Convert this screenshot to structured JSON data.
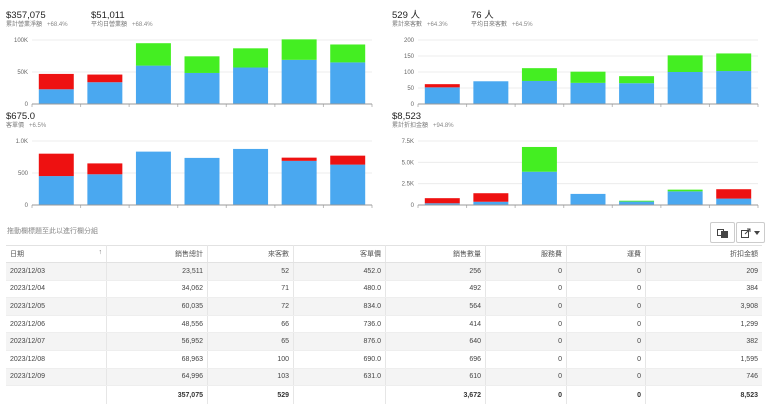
{
  "panels": [
    {
      "kpis": [
        {
          "value": "$357,075",
          "label": "累計營業淨額",
          "change": "+68.4%"
        },
        {
          "value": "$51,011",
          "label": "平均日營業額",
          "change": "+68.4%"
        }
      ],
      "chart_data": {
        "type": "bar",
        "stacked": true,
        "ylim": [
          0,
          100000
        ],
        "yticks": [
          0,
          50000,
          100000
        ],
        "ytick_labels": [
          "0",
          "50K",
          "100K"
        ],
        "series": [
          {
            "color": "#4aa8f0",
            "values": [
              23000,
              34000,
              60000,
              48500,
              57000,
              69000,
              65000
            ]
          },
          {
            "color": "#ee1111",
            "values": [
              24000,
              12000,
              0,
              0,
              0,
              0,
              0
            ]
          },
          {
            "color": "#44ee22",
            "values": [
              0,
              0,
              35000,
              26000,
              30000,
              32000,
              28000
            ]
          }
        ]
      }
    },
    {
      "kpis": [
        {
          "value": "529 人",
          "label": "累計來客數",
          "change": "+64.3%"
        },
        {
          "value": "76 人",
          "label": "平均日來客數",
          "change": "+64.5%"
        }
      ],
      "chart_data": {
        "type": "bar",
        "stacked": true,
        "ylim": [
          0,
          200
        ],
        "yticks": [
          0,
          50,
          100,
          150,
          200
        ],
        "ytick_labels": [
          "0",
          "50",
          "100",
          "150",
          "200"
        ],
        "series": [
          {
            "color": "#4aa8f0",
            "values": [
              52,
              71,
              72,
              66,
              65,
              100,
              103
            ]
          },
          {
            "color": "#ee1111",
            "values": [
              10,
              0,
              0,
              0,
              0,
              0,
              0
            ]
          },
          {
            "color": "#44ee22",
            "values": [
              0,
              0,
              40,
              35,
              22,
              52,
              55
            ]
          }
        ]
      }
    },
    {
      "kpis": [
        {
          "value": "$675.0",
          "label": "客單價",
          "change": "+6.5%"
        }
      ],
      "chart_data": {
        "type": "bar",
        "stacked": true,
        "ylim": [
          0,
          1000
        ],
        "yticks": [
          0,
          500,
          1000
        ],
        "ytick_labels": [
          "0",
          "500",
          "1.0K"
        ],
        "series": [
          {
            "color": "#4aa8f0",
            "values": [
              452,
              480,
              834,
              736,
              876,
              690,
              631
            ]
          },
          {
            "color": "#ee1111",
            "values": [
              350,
              170,
              0,
              0,
              0,
              50,
              140
            ]
          },
          {
            "color": "#44ee22",
            "values": [
              0,
              0,
              0,
              0,
              0,
              0,
              0
            ]
          }
        ]
      }
    },
    {
      "kpis": [
        {
          "value": "$8,523",
          "label": "累計折扣金額",
          "change": "+94.8%"
        }
      ],
      "chart_data": {
        "type": "bar",
        "stacked": true,
        "ylim": [
          0,
          7500
        ],
        "yticks": [
          0,
          2500,
          5000,
          7500
        ],
        "ytick_labels": [
          "0",
          "2.5K",
          "5.0K",
          "7.5K"
        ],
        "series": [
          {
            "color": "#4aa8f0",
            "values": [
              200,
              380,
              3900,
              1300,
              400,
              1600,
              750
            ]
          },
          {
            "color": "#ee1111",
            "values": [
              600,
              1000,
              0,
              0,
              0,
              0,
              1100
            ]
          },
          {
            "color": "#44ee22",
            "values": [
              0,
              0,
              2900,
              0,
              100,
              200,
              0
            ]
          }
        ]
      }
    }
  ],
  "group_hint": "拖動欄標題至此以進行欄分組",
  "toolbar": {
    "copy_icon": "copy-icon",
    "export_icon": "export-icon",
    "chevron_icon": "chevron-down-icon"
  },
  "table": {
    "headers": [
      "日期",
      "銷售總計",
      "來客數",
      "客單價",
      "銷售數量",
      "服務費",
      "運費",
      "折扣金額"
    ],
    "sort_icon": "↑",
    "rows": [
      [
        "2023/12/03",
        "23,511",
        "52",
        "452.0",
        "256",
        "0",
        "0",
        "209"
      ],
      [
        "2023/12/04",
        "34,062",
        "71",
        "480.0",
        "492",
        "0",
        "0",
        "384"
      ],
      [
        "2023/12/05",
        "60,035",
        "72",
        "834.0",
        "564",
        "0",
        "0",
        "3,908"
      ],
      [
        "2023/12/06",
        "48,556",
        "66",
        "736.0",
        "414",
        "0",
        "0",
        "1,299"
      ],
      [
        "2023/12/07",
        "56,952",
        "65",
        "876.0",
        "640",
        "0",
        "0",
        "382"
      ],
      [
        "2023/12/08",
        "68,963",
        "100",
        "690.0",
        "696",
        "0",
        "0",
        "1,595"
      ],
      [
        "2023/12/09",
        "64,996",
        "103",
        "631.0",
        "610",
        "0",
        "0",
        "746"
      ]
    ],
    "totals": [
      "",
      "357,075",
      "529",
      "",
      "3,672",
      "0",
      "0",
      "8,523"
    ]
  }
}
